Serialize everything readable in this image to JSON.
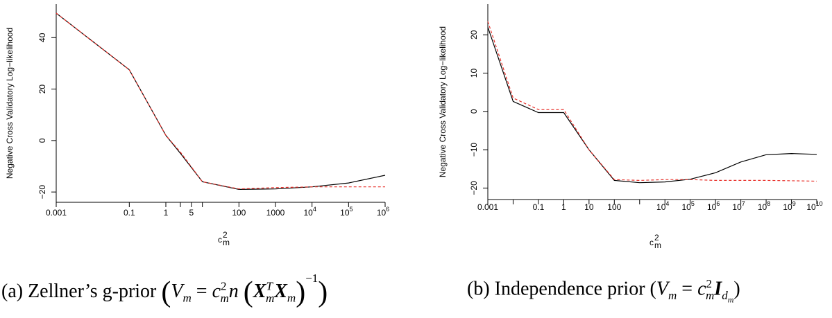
{
  "chart_data": [
    {
      "type": "line",
      "xlabel": "c",
      "xlabel_super": "2",
      "xlabel_sub": "m",
      "ylabel": "Negative Cross Validatory Log−likelihood",
      "xscale": "log",
      "xlim": [
        0.001,
        1000000
      ],
      "ylim": [
        -24,
        53
      ],
      "x_ticks": [
        0.001,
        0.1,
        1,
        2.5,
        5,
        10,
        100,
        1000,
        10000,
        100000,
        1000000
      ],
      "x_tick_labels": [
        {
          "base": "0.001",
          "sup": ""
        },
        {
          "base": "0.1",
          "sup": ""
        },
        {
          "base": "1",
          "sup": ""
        },
        {
          "base": "",
          "sup": ""
        },
        {
          "base": "5",
          "sup": ""
        },
        {
          "base": "",
          "sup": ""
        },
        {
          "base": "100",
          "sup": ""
        },
        {
          "base": "1000",
          "sup": ""
        },
        {
          "base": "10",
          "sup": "4"
        },
        {
          "base": "10",
          "sup": "5"
        },
        {
          "base": "10",
          "sup": "6"
        }
      ],
      "y_ticks": [
        -20,
        0,
        20,
        40
      ],
      "y_tick_labels": [
        "−20",
        "0",
        "20",
        "40"
      ],
      "grid": false,
      "series": [
        {
          "color": "#000000",
          "style": "solid",
          "x": [
            0.001,
            0.1,
            1,
            2.5,
            10,
            100,
            1000,
            10000,
            100000,
            1000000
          ],
          "y": [
            49.5,
            27.5,
            2,
            -5,
            -16,
            -19,
            -18.8,
            -18,
            -16.5,
            -13.5
          ]
        },
        {
          "color": "#e8302a",
          "style": "dashed",
          "x": [
            0.001,
            0.1,
            1,
            2.5,
            10,
            100,
            1000,
            10000,
            100000,
            1000000
          ],
          "y": [
            49.5,
            27.5,
            2,
            -4.5,
            -16,
            -18.8,
            -18.3,
            -18,
            -18,
            -18
          ]
        }
      ]
    },
    {
      "type": "line",
      "xlabel": "c",
      "xlabel_super": "2",
      "xlabel_sub": "m",
      "ylabel": "Negative Cross Validatory Log−likelihood",
      "xscale": "log",
      "xlim": [
        0.001,
        10000000000
      ],
      "ylim": [
        -23,
        28
      ],
      "x_ticks": [
        0.001,
        0.01,
        0.1,
        1,
        10,
        100,
        1000,
        10000,
        100000,
        1000000,
        10000000,
        100000000,
        1000000000,
        10000000000
      ],
      "x_tick_labels": [
        {
          "base": "0.001",
          "sup": ""
        },
        {
          "base": "",
          "sup": ""
        },
        {
          "base": "0.1",
          "sup": ""
        },
        {
          "base": "1",
          "sup": ""
        },
        {
          "base": "10",
          "sup": ""
        },
        {
          "base": "100",
          "sup": ""
        },
        {
          "base": "",
          "sup": ""
        },
        {
          "base": "10",
          "sup": "4"
        },
        {
          "base": "10",
          "sup": "5"
        },
        {
          "base": "10",
          "sup": "6"
        },
        {
          "base": "10",
          "sup": "7"
        },
        {
          "base": "10",
          "sup": "8"
        },
        {
          "base": "10",
          "sup": "9"
        },
        {
          "base": "10",
          "sup": "10"
        }
      ],
      "y_ticks": [
        -20,
        -10,
        0,
        10,
        20
      ],
      "y_tick_labels": [
        "−20",
        "−10",
        "0",
        "10",
        "20"
      ],
      "grid": false,
      "series": [
        {
          "color": "#000000",
          "style": "solid",
          "x": [
            0.001,
            0.01,
            0.1,
            1,
            10,
            100,
            1000,
            10000,
            100000,
            1000000,
            10000000,
            100000000,
            1000000000,
            10000000000
          ],
          "y": [
            22,
            2.6,
            -0.3,
            -0.3,
            -10,
            -18,
            -18.6,
            -18.4,
            -17.7,
            -16,
            -13.2,
            -11.3,
            -11,
            -11.2
          ]
        },
        {
          "color": "#e8302a",
          "style": "dashed",
          "x": [
            0.001,
            0.01,
            0.1,
            1,
            10,
            100,
            1000,
            10000,
            100000,
            1000000,
            10000000,
            100000000,
            1000000000,
            10000000000
          ],
          "y": [
            23.5,
            3.5,
            0.5,
            0.5,
            -10,
            -17.8,
            -18,
            -17.8,
            -17.8,
            -18,
            -18,
            -18,
            -18.1,
            -18.2
          ]
        }
      ]
    }
  ],
  "captions": {
    "a": {
      "prefix": "(a) Zellner’s g-prior ",
      "open_big": "(",
      "V": "V",
      "V_sub": "m",
      "eq": " = ",
      "c": "c",
      "c_sup": "2",
      "c_sub": "m",
      "n": "n",
      "paren_open": "(",
      "X1": "X",
      "X1_sup": "T",
      "X1_sub": "m",
      "X2": "X",
      "X2_sub": "m",
      "paren_close": ")",
      "inv": "−1",
      "close_big": ")"
    },
    "b": {
      "prefix": "(b) Independence prior ",
      "open": "(",
      "V": "V",
      "V_sub": "m",
      "eq": " = ",
      "c": "c",
      "c_sup": "2",
      "c_sub": "m",
      "I": "I",
      "I_sub": "d",
      "I_subsub": "m",
      "close": ")"
    }
  }
}
